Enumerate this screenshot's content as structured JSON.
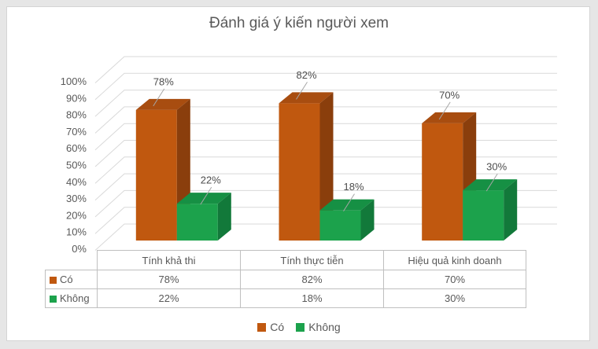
{
  "chart_data": {
    "type": "bar",
    "style": "3d-column",
    "title": "Đánh giá ý kiến người xem",
    "categories": [
      "Tính khả thi",
      "Tính thực tiễn",
      "Hiệu quả kinh doanh"
    ],
    "series": [
      {
        "name": "Có",
        "color": "#c0580f",
        "color_top": "#a84d10",
        "color_side": "#8a3e0c",
        "values": [
          78,
          82,
          70
        ],
        "labels": [
          "78%",
          "82%",
          "70%"
        ]
      },
      {
        "name": "Không",
        "color": "#1ca24c",
        "color_top": "#169044",
        "color_side": "#12793a",
        "values": [
          22,
          18,
          30
        ],
        "labels": [
          "22%",
          "18%",
          "30%"
        ]
      }
    ],
    "y_ticks": [
      "0%",
      "10%",
      "20%",
      "30%",
      "40%",
      "50%",
      "60%",
      "70%",
      "80%",
      "90%",
      "100%"
    ],
    "ylim": [
      0,
      100
    ],
    "grid": true,
    "legend_position": "bottom",
    "data_table": true
  }
}
